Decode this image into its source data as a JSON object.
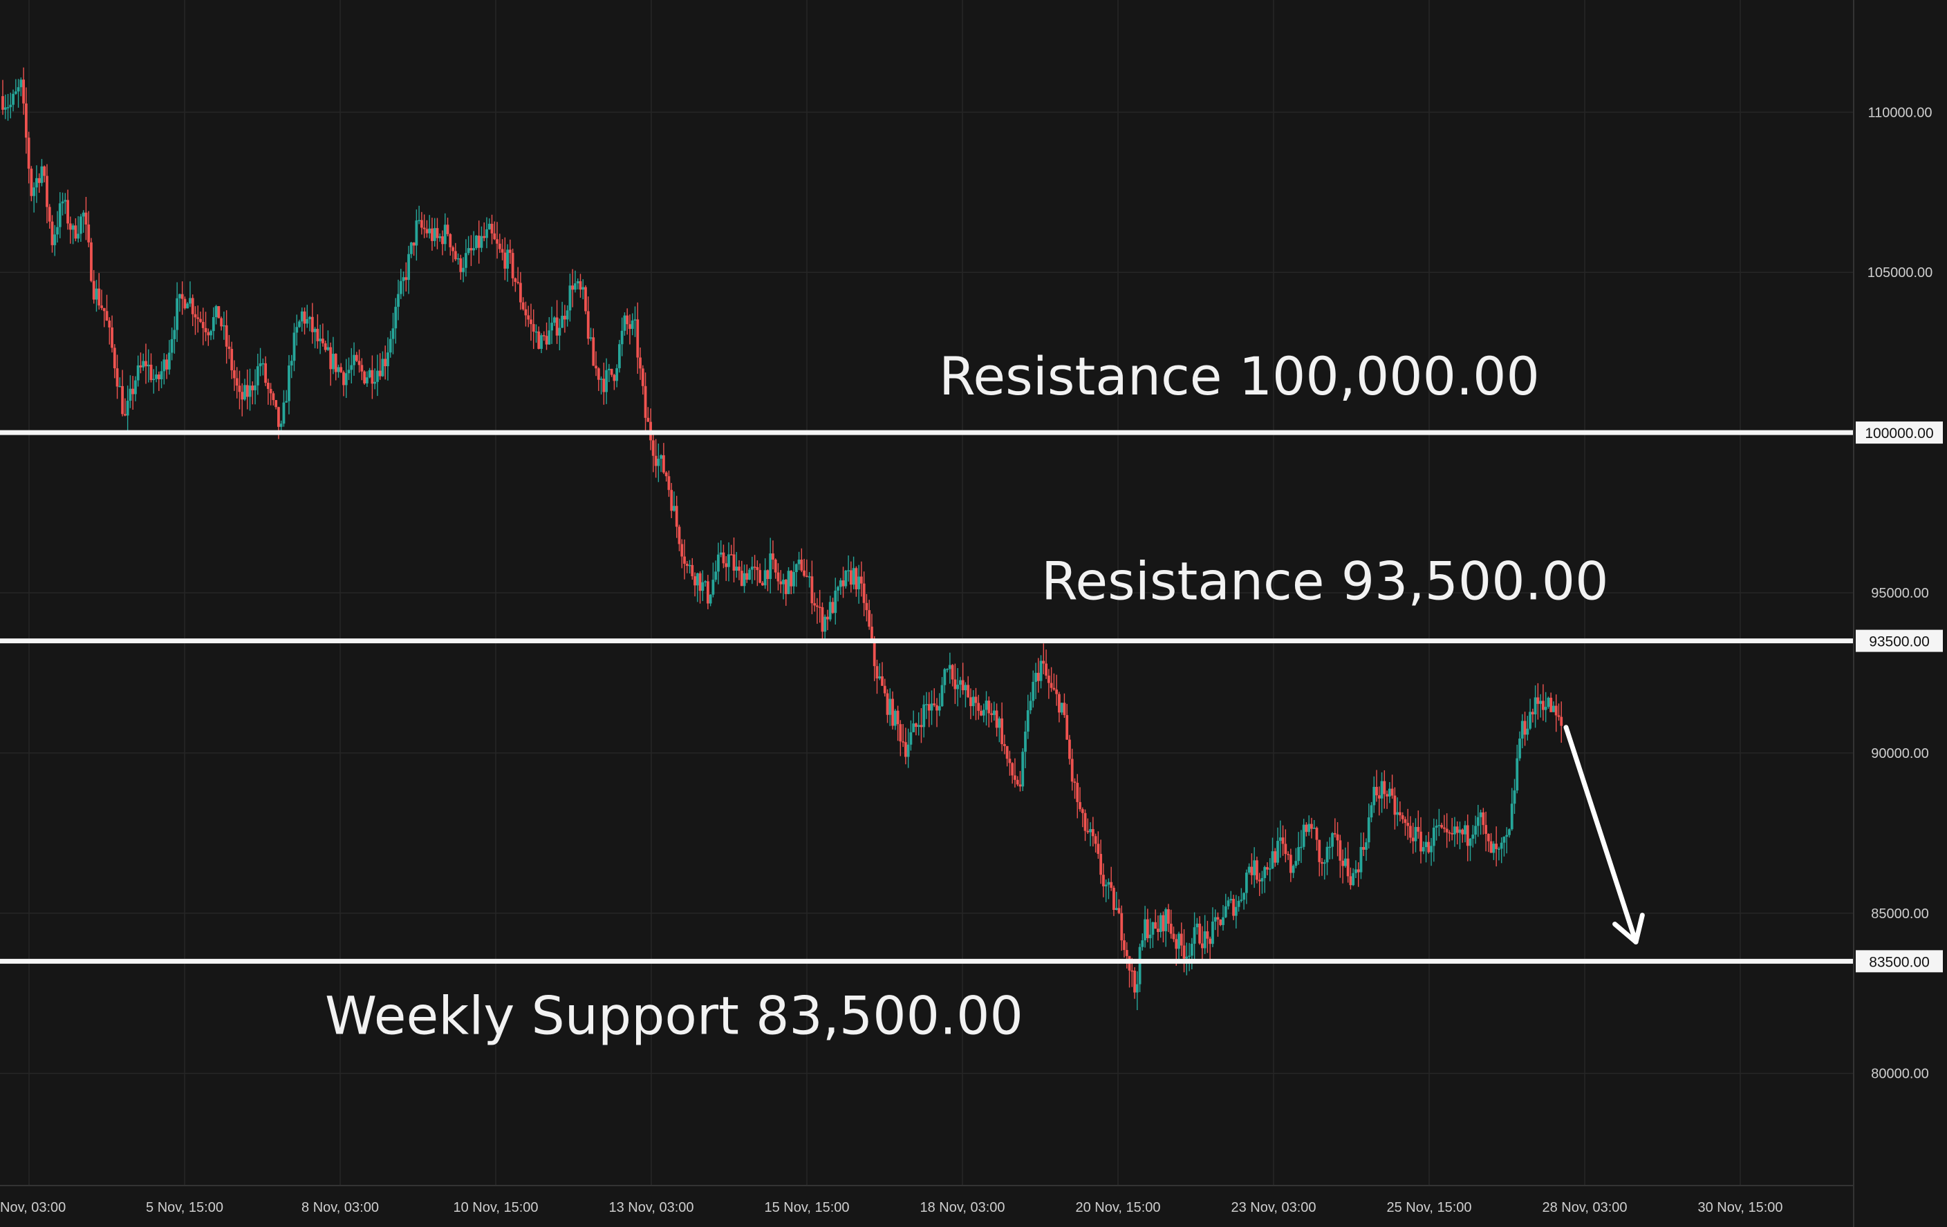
{
  "chart_data": {
    "type": "candlestick",
    "colors": {
      "background": "#161616",
      "up": "#26a69a",
      "down": "#ef5350",
      "level_line": "#f5f5f5",
      "grid": "#262626",
      "axis_text": "#cfcfcf"
    },
    "grid": true,
    "y_axis": {
      "position": "right",
      "range": [
        76500,
        113500
      ],
      "ticks": [
        "80000.00",
        "85000.00",
        "90000.00",
        "95000.00",
        "105000.00",
        "110000.00"
      ],
      "tick_values": [
        80000,
        85000,
        90000,
        95000,
        105000,
        110000
      ]
    },
    "x_axis": {
      "ticks": [
        "Nov, 03:00",
        "5 Nov, 15:00",
        "8 Nov, 03:00",
        "10 Nov, 15:00",
        "13 Nov, 03:00",
        "15 Nov, 15:00",
        "18 Nov, 03:00",
        "20 Nov, 15:00",
        "23 Nov, 03:00",
        "25 Nov, 15:00",
        "28 Nov, 03:00",
        "30 Nov, 15:00"
      ]
    },
    "levels": [
      {
        "name": "resistance-100000",
        "value": 100000,
        "tag": "100000.00",
        "label": "Resistance 100,000.00"
      },
      {
        "name": "resistance-93500",
        "value": 93500,
        "tag": "93500.00",
        "label": "Resistance 93,500.00"
      },
      {
        "name": "weekly-support-83500",
        "value": 83500,
        "tag": "83500.00",
        "label": "Weekly Support 83,500.00"
      }
    ],
    "price_path": [
      110500,
      110200,
      110800,
      107500,
      108300,
      106000,
      107200,
      106200,
      106800,
      104500,
      103800,
      102200,
      100400,
      101700,
      102200,
      101500,
      102300,
      103900,
      104300,
      103600,
      103300,
      103700,
      102400,
      101000,
      101300,
      102200,
      101000,
      100000,
      102500,
      103700,
      103200,
      102500,
      102200,
      101800,
      102100,
      101800,
      101900,
      102300,
      103800,
      105000,
      106400,
      106300,
      106000,
      106300,
      105200,
      105500,
      105900,
      106200,
      105600,
      105300,
      104200,
      103300,
      102800,
      103200,
      103500,
      104700,
      104200,
      102100,
      101600,
      101900,
      103400,
      103200,
      100500,
      99300,
      98700,
      97100,
      95800,
      95500,
      94900,
      95900,
      96100,
      95500,
      95700,
      95400,
      95900,
      95200,
      95400,
      95900,
      95000,
      94100,
      94600,
      95300,
      95600,
      94800,
      92800,
      91700,
      91000,
      90200,
      90800,
      91500,
      91300,
      92900,
      92100,
      91800,
      91200,
      91500,
      90900,
      89400,
      89000,
      91800,
      92800,
      91900,
      91500,
      89200,
      87800,
      87200,
      86000,
      85300,
      84200,
      82600,
      84600,
      84400,
      84900,
      84100,
      83800,
      84400,
      84100,
      84700,
      85200,
      85300,
      86500,
      86200,
      86600,
      87100,
      86400,
      87300,
      87800,
      86400,
      87300,
      86600,
      86100,
      87100,
      88700,
      88900,
      88200,
      87700,
      87400,
      87000,
      87600,
      87200,
      87500,
      87400,
      88200,
      87000,
      86800,
      87400,
      90500,
      91200,
      91700,
      91400,
      90800
    ],
    "forecast_arrow": {
      "from": 90800,
      "to": 84100
    }
  }
}
